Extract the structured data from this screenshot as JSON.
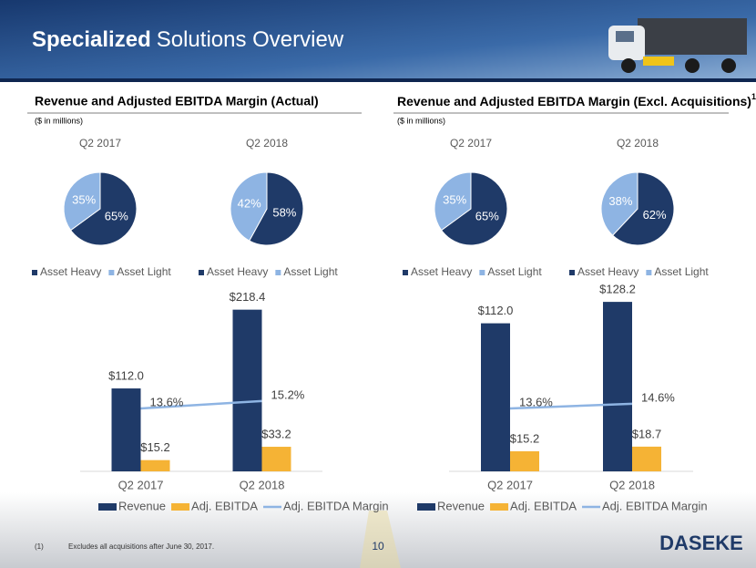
{
  "header": {
    "title_bold": "Specialized",
    "title_rest": "Solutions Overview"
  },
  "sections": [
    {
      "title": "Revenue and Adjusted EBITDA Margin (Actual)",
      "subtitle": "($ in millions)"
    },
    {
      "title": "Revenue and Adjusted EBITDA Margin (Excl. Acquisitions)",
      "footnote_ref": "1",
      "subtitle": "($ in millions)"
    }
  ],
  "chart_data": [
    {
      "type": "pie",
      "title": "Q2 2017",
      "categories": [
        "Asset Heavy",
        "Asset Light"
      ],
      "values": [
        65,
        35
      ],
      "value_labels": [
        "65%",
        "35%"
      ],
      "colors": [
        "#1f3a68",
        "#8eb4e3"
      ]
    },
    {
      "type": "pie",
      "title": "Q2 2018",
      "categories": [
        "Asset Heavy",
        "Asset Light"
      ],
      "values": [
        58,
        42
      ],
      "value_labels": [
        "58%",
        "42%"
      ],
      "colors": [
        "#1f3a68",
        "#8eb4e3"
      ]
    },
    {
      "type": "pie",
      "title": "Q2 2017",
      "categories": [
        "Asset Heavy",
        "Asset Light"
      ],
      "values": [
        65,
        35
      ],
      "value_labels": [
        "65%",
        "35%"
      ],
      "colors": [
        "#1f3a68",
        "#8eb4e3"
      ]
    },
    {
      "type": "pie",
      "title": "Q2 2018",
      "categories": [
        "Asset Heavy",
        "Asset Light"
      ],
      "values": [
        62,
        38
      ],
      "value_labels": [
        "62%",
        "38%"
      ],
      "colors": [
        "#1f3a68",
        "#8eb4e3"
      ]
    },
    {
      "type": "bar",
      "categories": [
        "Q2 2017",
        "Q2 2018"
      ],
      "ylim": [
        0,
        250
      ],
      "y2lim": [
        0,
        40
      ],
      "series": [
        {
          "name": "Revenue",
          "color": "#1f3a68",
          "values": [
            112.0,
            218.4
          ],
          "value_labels": [
            "$112.0",
            "$218.4"
          ]
        },
        {
          "name": "Adj. EBITDA",
          "color": "#f5b335",
          "values": [
            15.2,
            33.2
          ],
          "value_labels": [
            "$15.2",
            "$33.2"
          ]
        },
        {
          "name": "Adj. EBITDA Margin",
          "type": "line",
          "axis": "y2",
          "color": "#8eb4e3",
          "values": [
            13.6,
            15.2
          ],
          "value_labels": [
            "13.6%",
            "15.2%"
          ]
        }
      ]
    },
    {
      "type": "bar",
      "categories": [
        "Q2 2017",
        "Q2 2018"
      ],
      "ylim": [
        0,
        140
      ],
      "y2lim": [
        0,
        40
      ],
      "series": [
        {
          "name": "Revenue",
          "color": "#1f3a68",
          "values": [
            112.0,
            128.2
          ],
          "value_labels": [
            "$112.0",
            "$128.2"
          ]
        },
        {
          "name": "Adj. EBITDA",
          "color": "#f5b335",
          "values": [
            15.2,
            18.7
          ],
          "value_labels": [
            "$15.2",
            "$18.7"
          ]
        },
        {
          "name": "Adj. EBITDA Margin",
          "type": "line",
          "axis": "y2",
          "color": "#8eb4e3",
          "values": [
            13.6,
            14.6
          ],
          "value_labels": [
            "13.6%",
            "14.6%"
          ]
        }
      ]
    }
  ],
  "footnote": {
    "marker": "(1)",
    "text": "Excludes all acquisitions after June 30, 2017."
  },
  "page_number": "10",
  "logo": "DASEKE"
}
